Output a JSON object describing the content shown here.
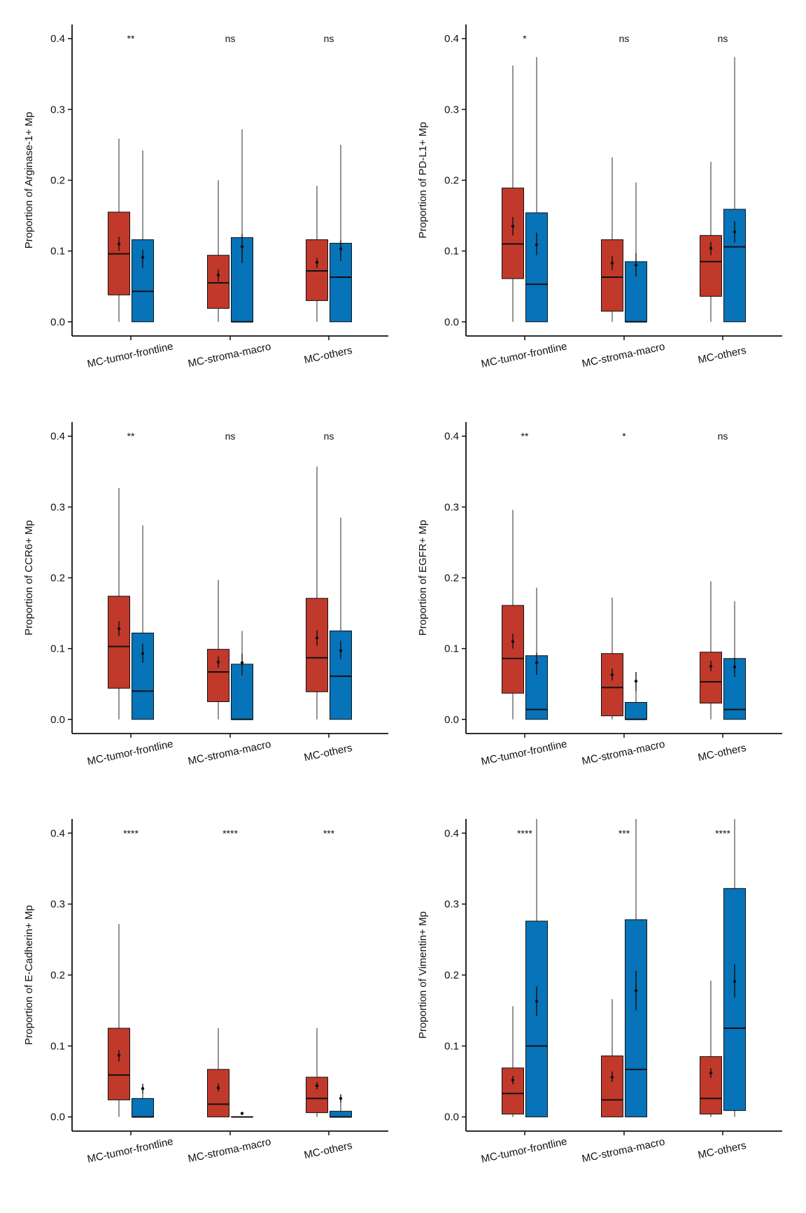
{
  "colors": {
    "group1": "#c0392b",
    "group2": "#0773b8",
    "stroke": "#111111"
  },
  "chart_data": [
    {
      "type": "box",
      "ylabel": "Proportion of Arginase-1+ Mp",
      "ylim": [
        -0.02,
        0.42
      ],
      "yticks": [
        0.0,
        0.1,
        0.2,
        0.3,
        0.4
      ],
      "ytick_labels": [
        "0.0",
        "0.1",
        "0.2",
        "0.3",
        "0.4"
      ],
      "categories": [
        "MC-tumor-frontline",
        "MC-stroma-macro",
        "MC-others"
      ],
      "significance": [
        "**",
        "ns",
        "ns"
      ],
      "boxes": [
        [
          {
            "min": 0.0,
            "q1": 0.038,
            "median": 0.096,
            "q3": 0.155,
            "max": 0.259,
            "mean": 0.11,
            "ci": [
              0.1,
              0.12
            ]
          },
          {
            "min": 0.0,
            "q1": 0.0,
            "median": 0.043,
            "q3": 0.116,
            "max": 0.242,
            "mean": 0.091,
            "ci": [
              0.076,
              0.102
            ]
          }
        ],
        [
          {
            "min": 0.0,
            "q1": 0.019,
            "median": 0.055,
            "q3": 0.094,
            "max": 0.2,
            "mean": 0.066,
            "ci": [
              0.057,
              0.074
            ]
          },
          {
            "min": 0.0,
            "q1": 0.0,
            "median": 0.0,
            "q3": 0.119,
            "max": 0.272,
            "mean": 0.106,
            "ci": [
              0.083,
              0.124
            ]
          }
        ],
        [
          {
            "min": 0.0,
            "q1": 0.03,
            "median": 0.072,
            "q3": 0.116,
            "max": 0.192,
            "mean": 0.084,
            "ci": [
              0.076,
              0.09
            ]
          },
          {
            "min": 0.0,
            "q1": 0.0,
            "median": 0.063,
            "q3": 0.111,
            "max": 0.25,
            "mean": 0.103,
            "ci": [
              0.086,
              0.115
            ]
          }
        ]
      ]
    },
    {
      "type": "box",
      "ylabel": "Proportion of PD-L1+ Mp",
      "ylim": [
        -0.02,
        0.42
      ],
      "yticks": [
        0.0,
        0.1,
        0.2,
        0.3,
        0.4
      ],
      "ytick_labels": [
        "0.0",
        "0.1",
        "0.2",
        "0.3",
        "0.4"
      ],
      "categories": [
        "MC-tumor-frontline",
        "MC-stroma-macro",
        "MC-others"
      ],
      "significance": [
        "*",
        "ns",
        "ns"
      ],
      "boxes": [
        [
          {
            "min": 0.0,
            "q1": 0.061,
            "median": 0.11,
            "q3": 0.189,
            "max": 0.362,
            "mean": 0.135,
            "ci": [
              0.122,
              0.148
            ]
          },
          {
            "min": 0.0,
            "q1": 0.0,
            "median": 0.053,
            "q3": 0.154,
            "max": 0.374,
            "mean": 0.109,
            "ci": [
              0.094,
              0.126
            ]
          }
        ],
        [
          {
            "min": 0.0,
            "q1": 0.015,
            "median": 0.063,
            "q3": 0.116,
            "max": 0.232,
            "mean": 0.083,
            "ci": [
              0.073,
              0.093
            ]
          },
          {
            "min": 0.0,
            "q1": 0.0,
            "median": 0.0,
            "q3": 0.085,
            "max": 0.197,
            "mean": 0.08,
            "ci": [
              0.064,
              0.097
            ]
          }
        ],
        [
          {
            "min": 0.0,
            "q1": 0.036,
            "median": 0.085,
            "q3": 0.122,
            "max": 0.226,
            "mean": 0.104,
            "ci": [
              0.094,
              0.113
            ]
          },
          {
            "min": 0.0,
            "q1": 0.0,
            "median": 0.106,
            "q3": 0.159,
            "max": 0.374,
            "mean": 0.127,
            "ci": [
              0.112,
              0.142
            ]
          }
        ]
      ]
    },
    {
      "type": "box",
      "ylabel": "Proportion of CCR6+ Mp",
      "ylim": [
        -0.02,
        0.42
      ],
      "yticks": [
        0.0,
        0.1,
        0.2,
        0.3,
        0.4
      ],
      "ytick_labels": [
        "0.0",
        "0.1",
        "0.2",
        "0.3",
        "0.4"
      ],
      "categories": [
        "MC-tumor-frontline",
        "MC-stroma-macro",
        "MC-others"
      ],
      "significance": [
        "**",
        "ns",
        "ns"
      ],
      "boxes": [
        [
          {
            "min": 0.0,
            "q1": 0.044,
            "median": 0.103,
            "q3": 0.174,
            "max": 0.327,
            "mean": 0.128,
            "ci": [
              0.118,
              0.139
            ]
          },
          {
            "min": 0.0,
            "q1": 0.0,
            "median": 0.04,
            "q3": 0.122,
            "max": 0.274,
            "mean": 0.093,
            "ci": [
              0.08,
              0.107
            ]
          }
        ],
        [
          {
            "min": 0.0,
            "q1": 0.025,
            "median": 0.067,
            "q3": 0.099,
            "max": 0.197,
            "mean": 0.081,
            "ci": [
              0.073,
              0.089
            ]
          },
          {
            "min": 0.0,
            "q1": 0.0,
            "median": 0.0,
            "q3": 0.078,
            "max": 0.125,
            "mean": 0.08,
            "ci": [
              0.062,
              0.093
            ]
          }
        ],
        [
          {
            "min": 0.0,
            "q1": 0.039,
            "median": 0.087,
            "q3": 0.171,
            "max": 0.357,
            "mean": 0.115,
            "ci": [
              0.104,
              0.126
            ]
          },
          {
            "min": 0.0,
            "q1": 0.0,
            "median": 0.061,
            "q3": 0.125,
            "max": 0.285,
            "mean": 0.097,
            "ci": [
              0.085,
              0.111
            ]
          }
        ]
      ]
    },
    {
      "type": "box",
      "ylabel": "Proportion of EGFR+ Mp",
      "ylim": [
        -0.02,
        0.42
      ],
      "yticks": [
        0.0,
        0.1,
        0.2,
        0.3,
        0.4
      ],
      "ytick_labels": [
        "0.0",
        "0.1",
        "0.2",
        "0.3",
        "0.4"
      ],
      "categories": [
        "MC-tumor-frontline",
        "MC-stroma-macro",
        "MC-others"
      ],
      "significance": [
        "**",
        "*",
        "ns"
      ],
      "boxes": [
        [
          {
            "min": 0.0,
            "q1": 0.037,
            "median": 0.086,
            "q3": 0.161,
            "max": 0.296,
            "mean": 0.11,
            "ci": [
              0.1,
              0.121
            ]
          },
          {
            "min": 0.0,
            "q1": 0.0,
            "median": 0.014,
            "q3": 0.09,
            "max": 0.186,
            "mean": 0.08,
            "ci": [
              0.063,
              0.094
            ]
          }
        ],
        [
          {
            "min": 0.0,
            "q1": 0.005,
            "median": 0.045,
            "q3": 0.093,
            "max": 0.172,
            "mean": 0.063,
            "ci": [
              0.055,
              0.072
            ]
          },
          {
            "min": 0.0,
            "q1": 0.0,
            "median": 0.0,
            "q3": 0.024,
            "max": 0.067,
            "mean": 0.054,
            "ci": [
              0.04,
              0.067
            ]
          }
        ],
        [
          {
            "min": 0.0,
            "q1": 0.023,
            "median": 0.053,
            "q3": 0.095,
            "max": 0.195,
            "mean": 0.075,
            "ci": [
              0.068,
              0.083
            ]
          },
          {
            "min": 0.0,
            "q1": 0.0,
            "median": 0.014,
            "q3": 0.086,
            "max": 0.167,
            "mean": 0.074,
            "ci": [
              0.06,
              0.087
            ]
          }
        ]
      ]
    },
    {
      "type": "box",
      "ylabel": "Proportion of E-Cadherin+ Mp",
      "ylim": [
        -0.02,
        0.42
      ],
      "yticks": [
        0.0,
        0.1,
        0.2,
        0.3,
        0.4
      ],
      "ytick_labels": [
        "0.0",
        "0.1",
        "0.2",
        "0.3",
        "0.4"
      ],
      "categories": [
        "MC-tumor-frontline",
        "MC-stroma-macro",
        "MC-others"
      ],
      "significance": [
        "****",
        "****",
        "***"
      ],
      "boxes": [
        [
          {
            "min": 0.0,
            "q1": 0.024,
            "median": 0.059,
            "q3": 0.125,
            "max": 0.272,
            "mean": 0.087,
            "ci": [
              0.078,
              0.094
            ]
          },
          {
            "min": 0.0,
            "q1": 0.0,
            "median": 0.0,
            "q3": 0.026,
            "max": 0.047,
            "mean": 0.04,
            "ci": [
              0.033,
              0.046
            ]
          }
        ],
        [
          {
            "min": 0.0,
            "q1": 0.0,
            "median": 0.018,
            "q3": 0.067,
            "max": 0.125,
            "mean": 0.041,
            "ci": [
              0.036,
              0.047
            ]
          },
          {
            "min": 0.0,
            "q1": 0.0,
            "median": 0.0,
            "q3": 0.0,
            "max": 0.0,
            "mean": 0.005,
            "ci": [
              0.004,
              0.006
            ]
          }
        ],
        [
          {
            "min": 0.0,
            "q1": 0.006,
            "median": 0.026,
            "q3": 0.056,
            "max": 0.125,
            "mean": 0.044,
            "ci": [
              0.039,
              0.049
            ]
          },
          {
            "min": 0.0,
            "q1": 0.0,
            "median": 0.0,
            "q3": 0.008,
            "max": 0.031,
            "mean": 0.026,
            "ci": [
              0.02,
              0.032
            ]
          }
        ]
      ]
    },
    {
      "type": "box",
      "ylabel": "Proportion of Vimentin+ Mp",
      "ylim": [
        -0.02,
        0.42
      ],
      "yticks": [
        0.0,
        0.1,
        0.2,
        0.3,
        0.4
      ],
      "ytick_labels": [
        "0.0",
        "0.1",
        "0.2",
        "0.3",
        "0.4"
      ],
      "categories": [
        "MC-tumor-frontline",
        "MC-stroma-macro",
        "MC-others"
      ],
      "significance": [
        "****",
        "***",
        "****"
      ],
      "boxes": [
        [
          {
            "min": 0.0,
            "q1": 0.004,
            "median": 0.033,
            "q3": 0.069,
            "max": 0.156,
            "mean": 0.052,
            "ci": [
              0.046,
              0.058
            ]
          },
          {
            "min": 0.0,
            "q1": 0.0,
            "median": 0.1,
            "q3": 0.276,
            "max": 0.42,
            "mean": 0.163,
            "ci": [
              0.142,
              0.184
            ]
          }
        ],
        [
          {
            "min": 0.0,
            "q1": 0.0,
            "median": 0.024,
            "q3": 0.086,
            "max": 0.166,
            "mean": 0.056,
            "ci": [
              0.049,
              0.064
            ]
          },
          {
            "min": 0.0,
            "q1": 0.0,
            "median": 0.067,
            "q3": 0.278,
            "max": 0.42,
            "mean": 0.178,
            "ci": [
              0.15,
              0.206
            ]
          }
        ],
        [
          {
            "min": 0.0,
            "q1": 0.004,
            "median": 0.026,
            "q3": 0.085,
            "max": 0.192,
            "mean": 0.062,
            "ci": [
              0.055,
              0.069
            ]
          },
          {
            "min": 0.0,
            "q1": 0.009,
            "median": 0.125,
            "q3": 0.322,
            "max": 0.42,
            "mean": 0.191,
            "ci": [
              0.168,
              0.215
            ]
          }
        ]
      ]
    }
  ]
}
